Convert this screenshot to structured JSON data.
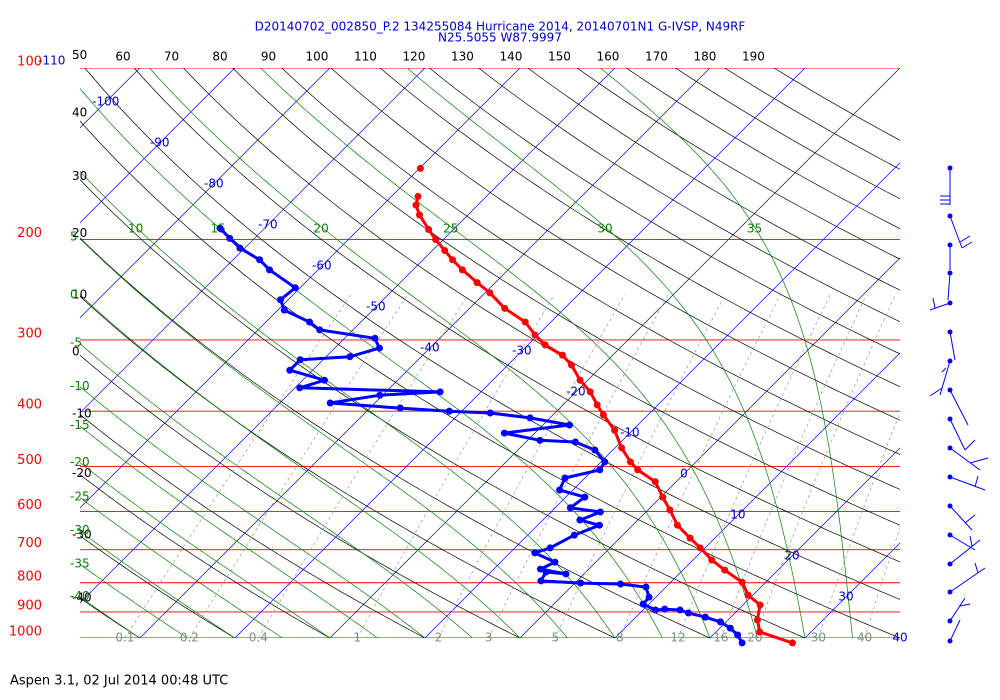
{
  "chart_data": {
    "type": "skew-t",
    "title": "D20140702_002850_P.2 134255084 Hurricane 2014, 20140701N1 G-IVSP, N49RF",
    "subtitle": "N25.5055 W87.9997",
    "footer": "Aspen 3.1, 02 Jul 2014  00:48 UTC",
    "log_y": true,
    "ylim": [
      1000,
      100
    ],
    "yticks": [
      100,
      200,
      300,
      400,
      500,
      600,
      700,
      800,
      900,
      1000
    ],
    "xlim": [
      -46.3,
      40
    ],
    "isotherm_ticks": [
      -110,
      -100,
      -90,
      -80,
      -70,
      -60,
      -50,
      -40,
      -30,
      -20,
      -10,
      0,
      10,
      20,
      30,
      40
    ],
    "dry_adiabat_ticks": [
      -40,
      -30,
      -20,
      -10,
      0,
      10,
      20,
      30,
      40,
      50,
      60,
      70,
      80,
      90,
      100,
      110,
      120,
      130,
      140,
      150,
      160,
      170,
      180,
      190
    ],
    "moist_adiabat_ticks": [
      -40,
      -35,
      -30,
      -25,
      -20,
      -15,
      -10,
      -5,
      0,
      5,
      10,
      15,
      20,
      25,
      30,
      35
    ],
    "mixing_ratio_ticks": [
      0.1,
      0.2,
      0.4,
      1,
      2,
      3,
      5,
      8,
      12,
      16,
      20,
      30,
      40
    ],
    "series": [
      {
        "color": "#ff0000",
        "pressure": [
          1020,
          976,
          930,
          875,
          841,
          798,
          760,
          730,
          695,
          668,
          634,
          596,
          566,
          532,
          507,
          491,
          464,
          432,
          406,
          390,
          370,
          353,
          332,
          319,
          306,
          294,
          279,
          264,
          248,
          238,
          226,
          217,
          209,
          200,
          192,
          181,
          174,
          168,
          null,
          150
        ],
        "values": [
          29.2,
          24.6,
          23.1,
          21.8,
          19.5,
          17.5,
          14.4,
          12.0,
          9.5,
          7.4,
          4.7,
          2.3,
          0.2,
          -2.2,
          -5.3,
          -6.9,
          -9.3,
          -11.9,
          -14.7,
          -16.4,
          -18.5,
          -20.8,
          -23.3,
          -25.3,
          -28.2,
          -30.3,
          -32.7,
          -36.3,
          -39.5,
          -41.9,
          -44.8,
          -46.9,
          -48.7,
          -50.8,
          -52.6,
          -55.1,
          -56.5,
          -57.2,
          null,
          -59.9
        ]
      },
      {
        "color": "#0000ff",
        "pressure": [
          1020,
          988,
          961,
          937,
          919,
          904,
          893,
          890,
          893,
          872,
          848,
          814,
          804,
          801,
          794,
          766,
          772,
          757,
          736,
          709,
          695,
          660,
          634,
          621,
          601,
          591,
          566,
          550,
          524,
          507,
          491,
          468,
          453,
          450,
          437,
          423,
          411,
          403,
          400,
          395,
          387,
          375,
          370,
          364,
          353,
          339,
          325,
          321,
          310,
          298,
          288,
          279,
          266,
          255,
          243,
          226,
          217,
          207,
          199,
          191
        ],
        "values": [
          23.9,
          22.6,
          21.1,
          19.4,
          17.3,
          15.1,
          13.9,
          12.2,
          11.3,
          9.4,
          9.3,
          7.9,
          4.9,
          0.6,
          -3.8,
          -4.2,
          -1.9,
          -5.1,
          -4.3,
          -7.4,
          -6.3,
          -5.1,
          -3.5,
          -6.1,
          -4.8,
          -8.4,
          -8.0,
          -11.4,
          -12.1,
          -9.3,
          -9.6,
          -11.9,
          -14.8,
          -18.7,
          -23.2,
          -17.2,
          -22.1,
          -26.8,
          -31.3,
          -36.8,
          -44.7,
          -40.3,
          -34.3,
          -49.5,
          -47.7,
          -52.4,
          -52.4,
          -47.5,
          -45.3,
          -46.8,
          -53.5,
          -55.4,
          -59.3,
          -60.8,
          -60.5,
          -65.1,
          -67.2,
          -70.5,
          -72.6,
          -74.7
        ]
      }
    ]
  }
}
